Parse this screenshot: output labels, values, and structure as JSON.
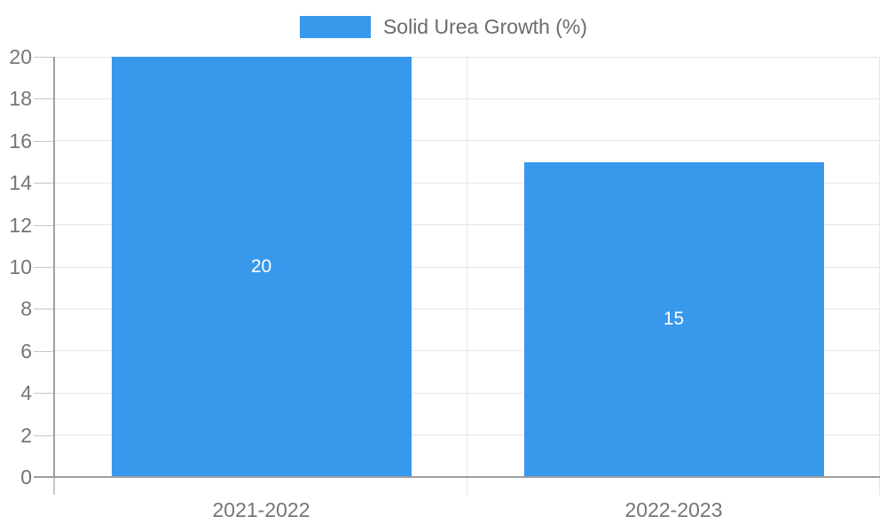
{
  "chart_data": {
    "type": "bar",
    "title": "",
    "legend": {
      "label": "Solid Urea Growth (%)",
      "position": "top"
    },
    "categories": [
      "2021-2022",
      "2022-2023"
    ],
    "series": [
      {
        "name": "Solid Urea Growth (%)",
        "values": [
          20,
          15
        ],
        "data_labels": [
          "20",
          "15"
        ]
      }
    ],
    "xlabel": "",
    "ylabel": "",
    "ylim": [
      0,
      20
    ],
    "yticks": [
      0,
      2,
      4,
      6,
      8,
      10,
      12,
      14,
      16,
      18,
      20
    ],
    "grid": true,
    "colors": {
      "bar": "#3898EC",
      "gridline": "#e6e6e6",
      "axis": "#9e9e9e",
      "tick": "#c6c6c6",
      "axis_label": "#757575",
      "legend_text": "#6b6b6b",
      "data_label": "#ffffff",
      "background": "#ffffff"
    }
  }
}
